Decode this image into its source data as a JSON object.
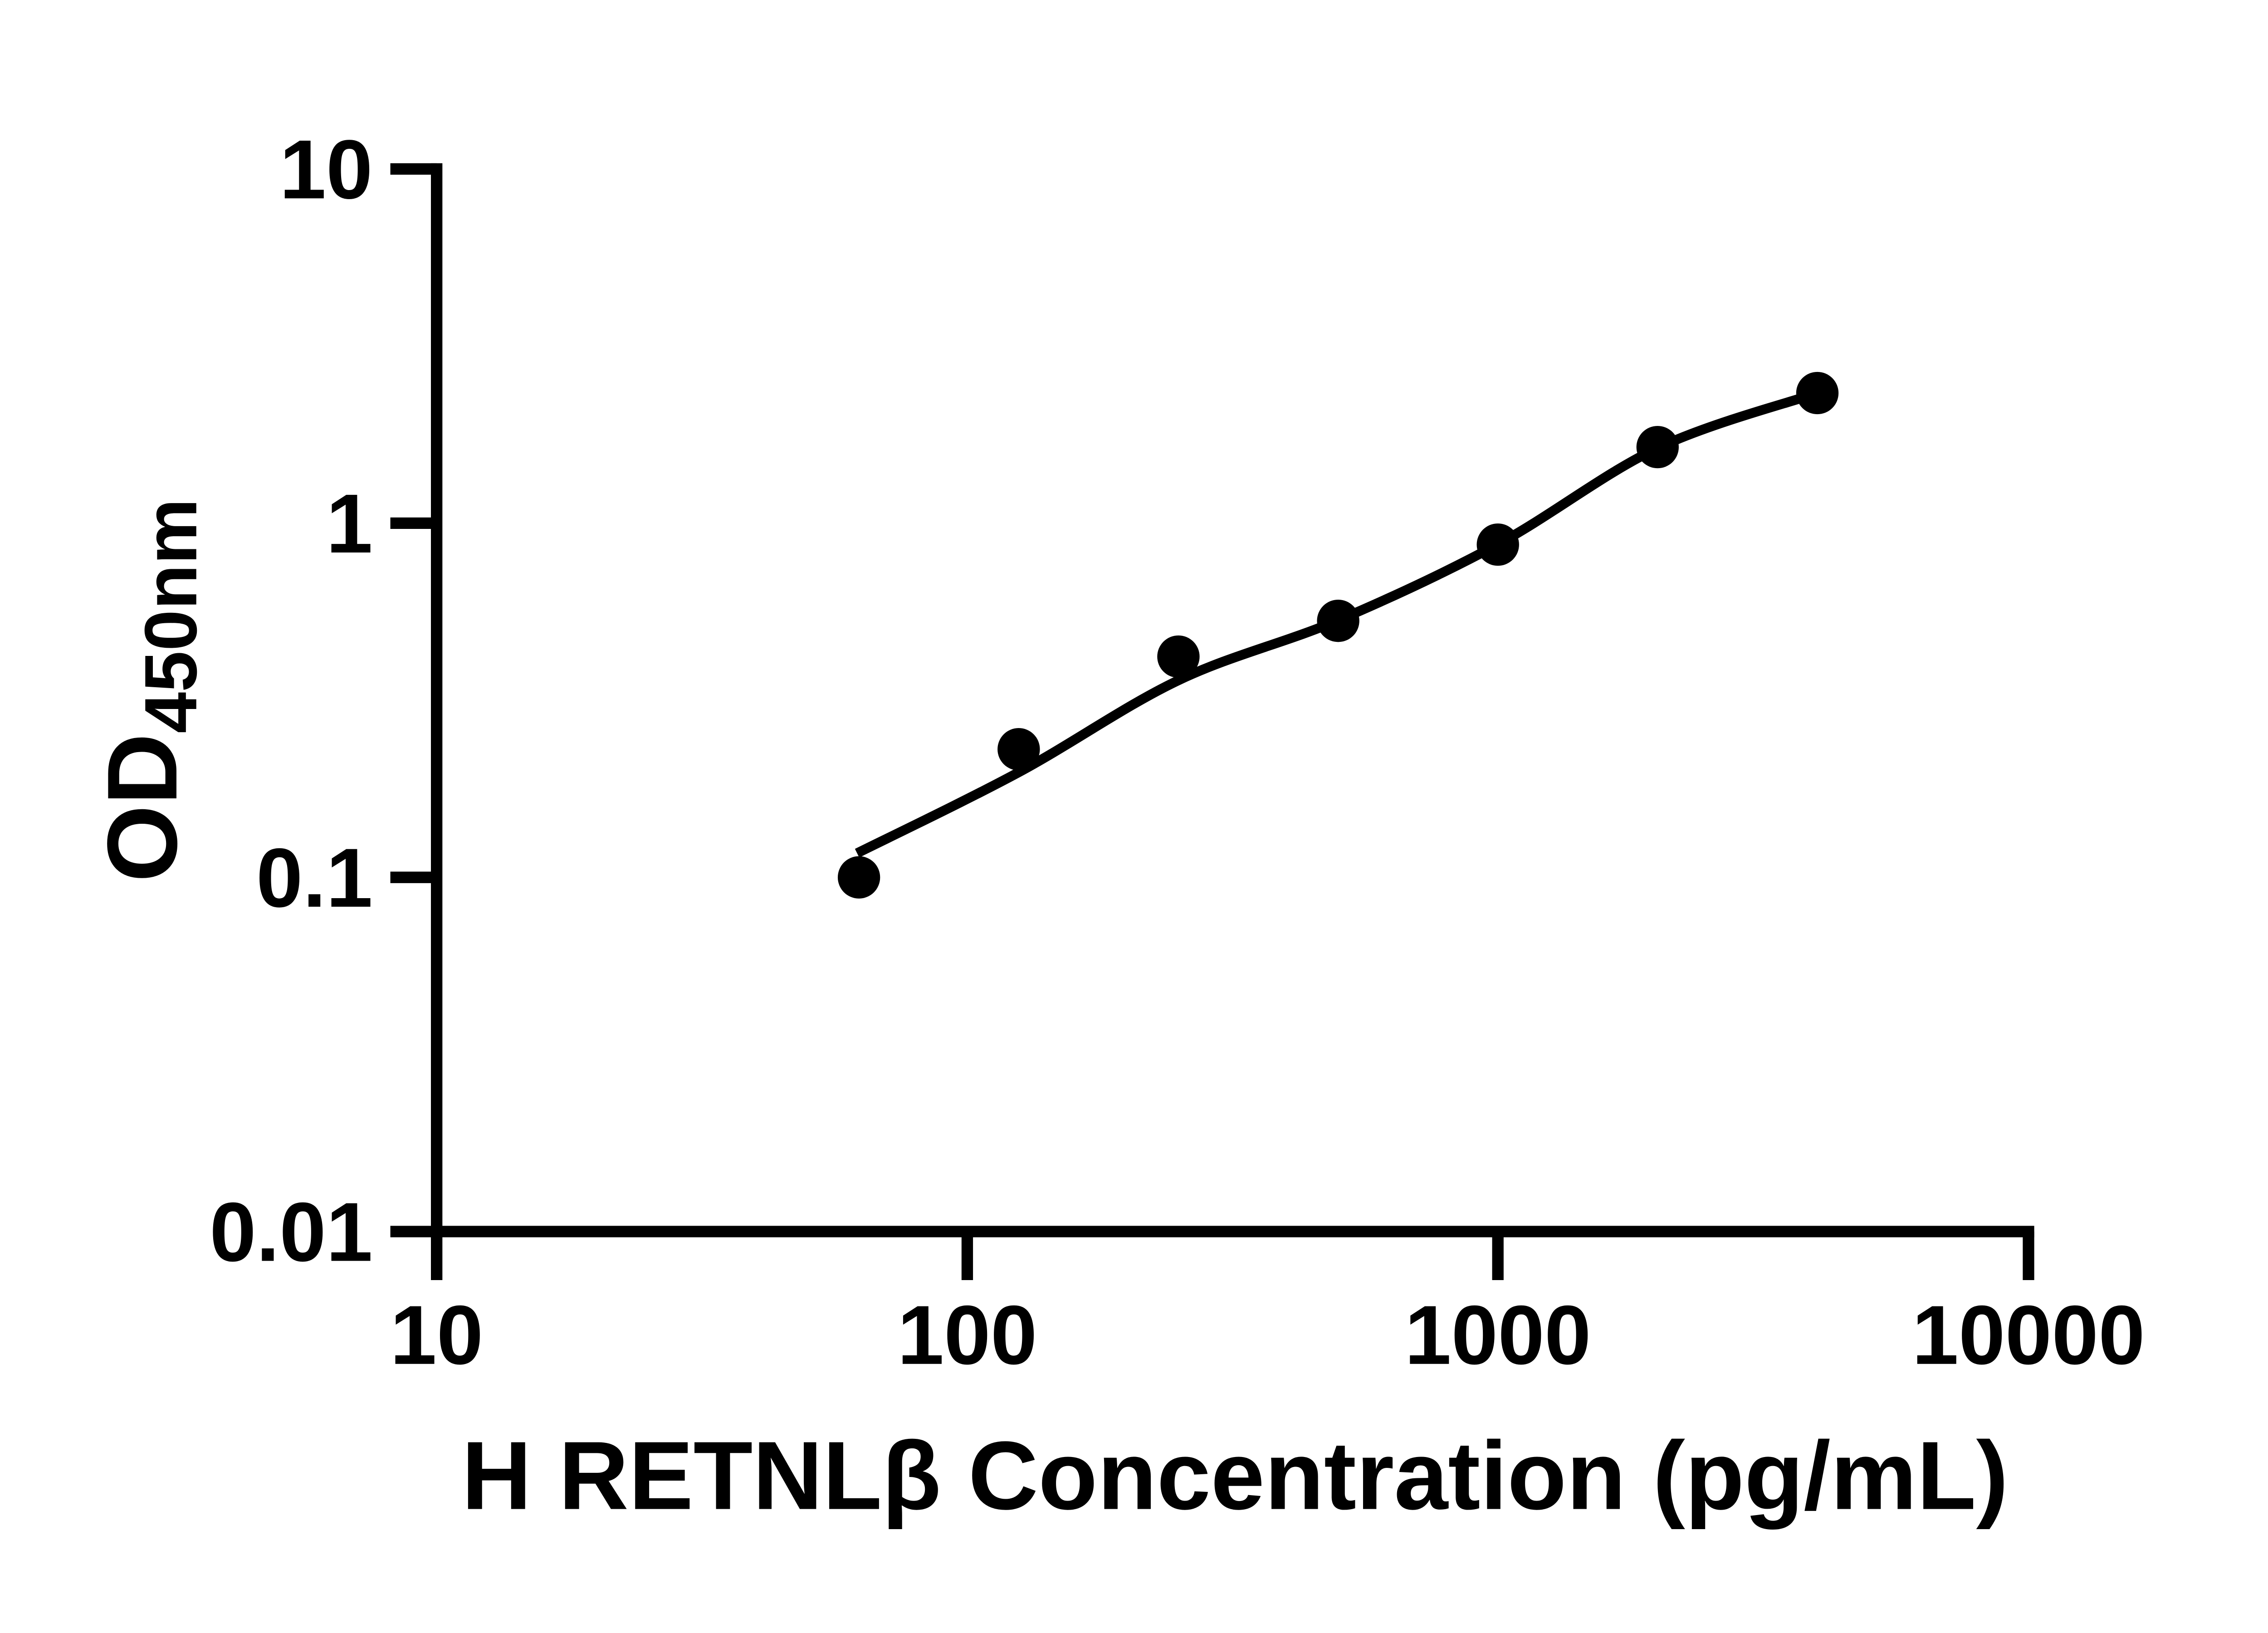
{
  "figure": {
    "background_color": "#ffffff",
    "ink_color": "#000000"
  },
  "chart_data": {
    "type": "scatter",
    "title": "",
    "x_axis": {
      "label": "H RETNLβ Concentration (pg/mL)",
      "scale": "log10",
      "range": [
        10,
        10000
      ],
      "ticks": [
        {
          "value": 10,
          "label": "10"
        },
        {
          "value": 100,
          "label": "100"
        },
        {
          "value": 1000,
          "label": "1000"
        },
        {
          "value": 10000,
          "label": "10000"
        }
      ],
      "grid": false
    },
    "y_axis": {
      "label_main": "OD",
      "label_subscript": "450nm",
      "scale": "log10",
      "range": [
        0.01,
        10
      ],
      "ticks": [
        {
          "value": 10,
          "label": "10"
        },
        {
          "value": 1,
          "label": "1"
        },
        {
          "value": 0.1,
          "label": "0.1"
        },
        {
          "value": 0.01,
          "label": "0.01"
        }
      ],
      "grid": false
    },
    "series": [
      {
        "name": "standard-curve-points",
        "marker": "filled-circle",
        "color": "#000000",
        "points": [
          {
            "x": 62.5,
            "od": 0.1
          },
          {
            "x": 125,
            "od": 0.23
          },
          {
            "x": 250,
            "od": 0.42
          },
          {
            "x": 500,
            "od": 0.53
          },
          {
            "x": 1000,
            "od": 0.87
          },
          {
            "x": 2000,
            "od": 1.64
          },
          {
            "x": 4000,
            "od": 2.33
          }
        ]
      }
    ],
    "fit_curve": {
      "name": "four-parameter-logistic-fit",
      "color": "#000000",
      "anchors": [
        {
          "x": 62,
          "od": 0.117
        },
        {
          "x": 125,
          "od": 0.198
        },
        {
          "x": 250,
          "od": 0.36
        },
        {
          "x": 500,
          "od": 0.532
        },
        {
          "x": 1000,
          "od": 0.872
        },
        {
          "x": 2000,
          "od": 1.63
        },
        {
          "x": 4000,
          "od": 2.33
        }
      ]
    },
    "legend": null
  }
}
